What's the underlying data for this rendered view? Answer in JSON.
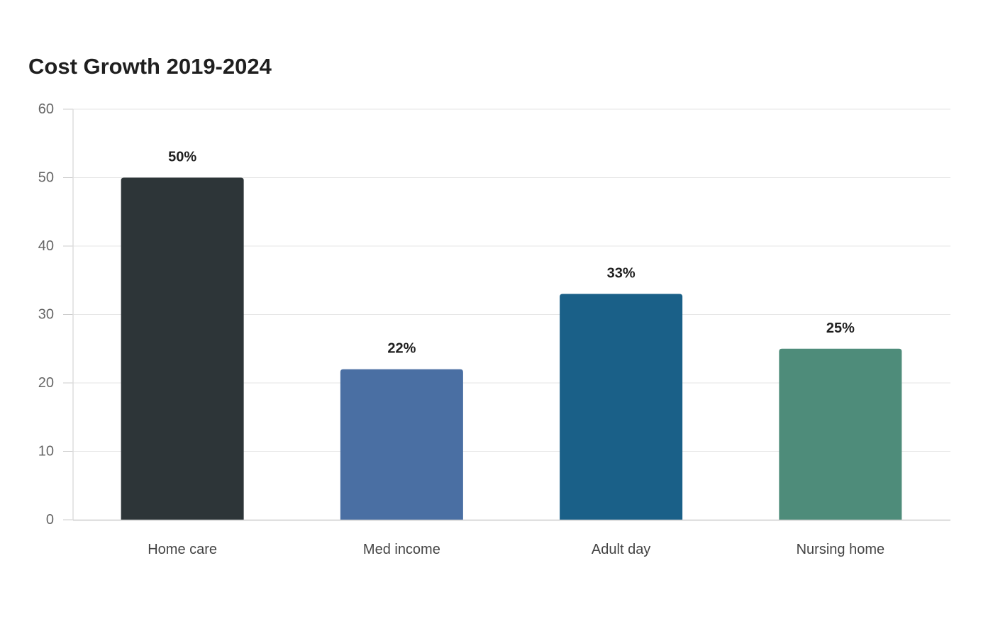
{
  "chart_data": {
    "type": "bar",
    "title": "Cost Growth 2019-2024",
    "xlabel": "",
    "ylabel": "",
    "categories": [
      "Home care",
      "Med income",
      "Adult day",
      "Nursing home"
    ],
    "values": [
      50,
      22,
      33,
      25
    ],
    "data_labels": [
      "50%",
      "22%",
      "33%",
      "25%"
    ],
    "colors": [
      "#2d3538",
      "#4a6fa3",
      "#1a6088",
      "#4e8c7a"
    ],
    "ylim": [
      0,
      60
    ],
    "yticks": [
      0,
      10,
      20,
      30,
      40,
      50,
      60
    ],
    "grid": true,
    "legend": "none"
  }
}
